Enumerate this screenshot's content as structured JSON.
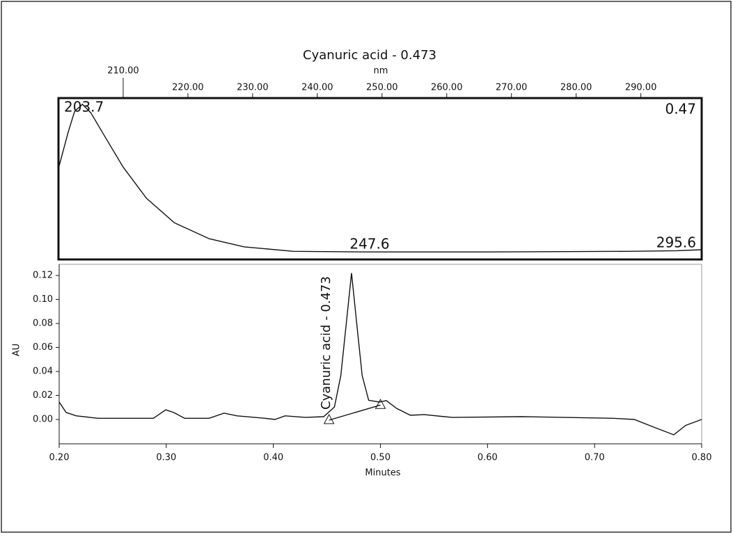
{
  "chart_data": [
    {
      "type": "line",
      "title": "Cyanuric acid - 0.473",
      "x_label": "nm",
      "x": [
        200,
        201.5,
        202.5,
        203.7,
        205,
        207.1,
        210,
        213.6,
        217.9,
        223.3,
        228.7,
        236.3,
        247.6,
        266.5,
        288.1,
        295.6,
        299.4
      ],
      "values": [
        0.266,
        0.381,
        0.448,
        0.47,
        0.443,
        0.37,
        0.27,
        0.171,
        0.093,
        0.042,
        0.016,
        0.002,
        0,
        0,
        0.002,
        0.004,
        0.007
      ],
      "color": "#111111",
      "xlim": [
        200,
        299.4
      ],
      "ylim": [
        -0.024,
        0.49
      ],
      "xticks": [
        {
          "value": 210,
          "label": "210.00"
        },
        {
          "value": 220,
          "label": "220.00"
        },
        {
          "value": 230,
          "label": "230.00"
        },
        {
          "value": 240,
          "label": "240.00"
        },
        {
          "value": 250,
          "label": "250.00"
        },
        {
          "value": 260,
          "label": "260.00"
        },
        {
          "value": 270,
          "label": "270.00"
        },
        {
          "value": 280,
          "label": "280.00"
        },
        {
          "value": 290,
          "label": "290.00"
        }
      ],
      "annotations": [
        "203.7",
        "0.47",
        "247.6",
        "295.6"
      ]
    },
    {
      "type": "line",
      "x_label": "Minutes",
      "y_label": "AU",
      "peak_label": "Cyanuric acid - 0.473",
      "x": [
        0.2,
        0.2065,
        0.216,
        0.236,
        0.275,
        0.288,
        0.2995,
        0.307,
        0.317,
        0.34,
        0.354,
        0.366,
        0.392,
        0.4015,
        0.411,
        0.43,
        0.447,
        0.457,
        0.463,
        0.4685,
        0.473,
        0.4775,
        0.483,
        0.489,
        0.499,
        0.5055,
        0.515,
        0.528,
        0.541,
        0.567,
        0.632,
        0.717,
        0.737,
        0.757,
        0.774,
        0.785,
        0.8
      ],
      "values": [
        0.0145,
        0.0058,
        0.003,
        0.001,
        0.001,
        0.001,
        0.008,
        0.0058,
        0.001,
        0.001,
        0.0052,
        0.003,
        0.001,
        0,
        0.003,
        0.0017,
        0.0023,
        0.0104,
        0.0365,
        0.083,
        0.122,
        0.083,
        0.0365,
        0.016,
        0.0145,
        0.0157,
        0.0093,
        0.0035,
        0.004,
        0.0017,
        0.0023,
        0.001,
        0,
        -0.007,
        -0.0128,
        -0.005,
        0
      ],
      "baseline": {
        "x": [
          0.452,
          0.5
        ],
        "values": [
          -0.0006,
          0.012
        ]
      },
      "color": "#111111",
      "xlim": [
        0.2,
        0.8
      ],
      "ylim": [
        -0.0203,
        0.1293
      ],
      "xticks": [
        {
          "value": 0.2,
          "label": "0.20"
        },
        {
          "value": 0.3,
          "label": "0.30"
        },
        {
          "value": 0.4,
          "label": "0.40"
        },
        {
          "value": 0.5,
          "label": "0.50"
        },
        {
          "value": 0.6,
          "label": "0.60"
        },
        {
          "value": 0.7,
          "label": "0.70"
        },
        {
          "value": 0.8,
          "label": "0.80"
        }
      ],
      "yticks": [
        {
          "value": 0,
          "label": "0.00"
        },
        {
          "value": 0.02,
          "label": "0.02"
        },
        {
          "value": 0.04,
          "label": "0.04"
        },
        {
          "value": 0.06,
          "label": "0.06"
        },
        {
          "value": 0.08,
          "label": "0.08"
        },
        {
          "value": 0.1,
          "label": "0.10"
        },
        {
          "value": 0.12,
          "label": "0.12"
        }
      ]
    }
  ]
}
